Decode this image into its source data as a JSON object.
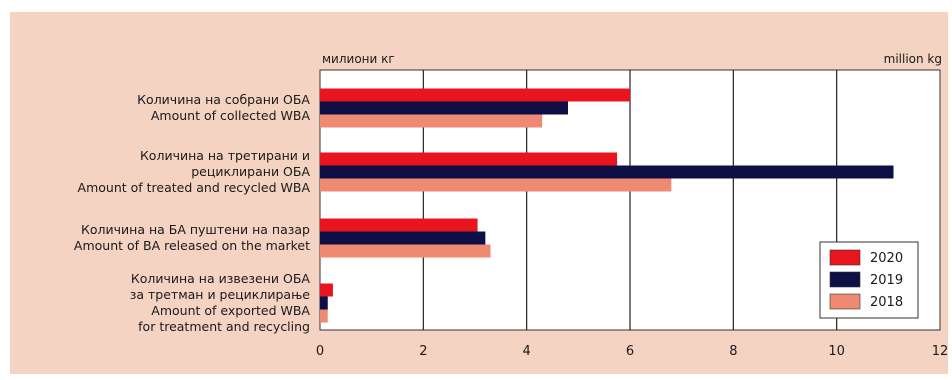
{
  "chart_data": {
    "type": "bar",
    "orientation": "horizontal",
    "unit_left": "милиони кг",
    "unit_right": "million kg",
    "categories": [
      [
        "Количина на собрани ОБА",
        "Amount of collected WBA"
      ],
      [
        "Количина на третирани и",
        "рециклирани ОБА",
        "Amount of treated and recycled WBA"
      ],
      [
        "Количина на БА пуштени на пазар",
        "Amount of BA released on the market"
      ],
      [
        "Количина на извезени ОБА",
        "за третман и рециклирање",
        "Amount of exported WBA",
        "for treatment and recycling"
      ]
    ],
    "series": [
      {
        "name": "2020",
        "color": "#e8141e",
        "values": [
          6.0,
          5.75,
          3.05,
          0.25
        ]
      },
      {
        "name": "2019",
        "color": "#0d0f45",
        "values": [
          4.8,
          11.1,
          3.2,
          0.15
        ]
      },
      {
        "name": "2018",
        "color": "#ef8a72",
        "values": [
          4.3,
          6.8,
          3.3,
          0.15
        ]
      }
    ],
    "xlim": [
      0,
      12
    ],
    "xticks": [
      "0",
      "2",
      "4",
      "6",
      "8",
      "10",
      "12"
    ],
    "grid": true,
    "legend": "bottom-right"
  }
}
